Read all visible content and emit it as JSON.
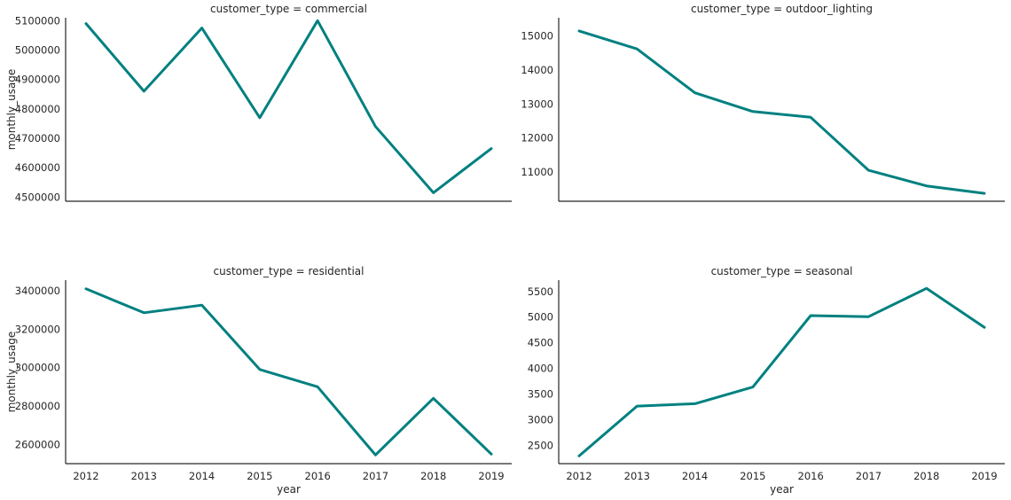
{
  "chart_data": [
    {
      "type": "line",
      "title": "customer_type = commercial",
      "xlabel": "",
      "ylabel": "monthly_usage",
      "x": [
        2012,
        2013,
        2014,
        2015,
        2016,
        2017,
        2018,
        2019
      ],
      "values": [
        5090000,
        4860000,
        5075000,
        4770000,
        5100000,
        4740000,
        4515000,
        4665000
      ],
      "ylim": [
        4486000,
        5110000
      ],
      "yticks": [
        4500000,
        4600000,
        4700000,
        4800000,
        4900000,
        5000000,
        5100000
      ],
      "ytick_labels": [
        "4500000",
        "4600000",
        "4700000",
        "4800000",
        "4900000",
        "5000000",
        "5100000"
      ],
      "xtick_labels": []
    },
    {
      "type": "line",
      "title": "customer_type = outdoor_lighting",
      "xlabel": "",
      "ylabel": "",
      "x": [
        2012,
        2013,
        2014,
        2015,
        2016,
        2017,
        2018,
        2019
      ],
      "values": [
        15150,
        14620,
        13330,
        12780,
        12610,
        11050,
        10590,
        10370
      ],
      "ylim": [
        10139,
        15539
      ],
      "yticks": [
        11000,
        12000,
        13000,
        14000,
        15000
      ],
      "ytick_labels": [
        "11000",
        "12000",
        "13000",
        "14000",
        "15000"
      ],
      "xtick_labels": []
    },
    {
      "type": "line",
      "title": "customer_type = residential",
      "xlabel": "year",
      "ylabel": "monthly_usage",
      "x": [
        2012,
        2013,
        2014,
        2015,
        2016,
        2017,
        2018,
        2019
      ],
      "values": [
        3410000,
        3285000,
        3325000,
        2990000,
        2900000,
        2545000,
        2840000,
        2550000
      ],
      "ylim": [
        2500000,
        3455000
      ],
      "yticks": [
        2600000,
        2800000,
        3000000,
        3200000,
        3400000
      ],
      "ytick_labels": [
        "2600000",
        "2800000",
        "3000000",
        "3200000",
        "3400000"
      ],
      "xtick_labels": [
        "2012",
        "2013",
        "2014",
        "2015",
        "2016",
        "2017",
        "2018",
        "2019"
      ]
    },
    {
      "type": "line",
      "title": "customer_type = seasonal",
      "xlabel": "year",
      "ylabel": "",
      "x": [
        2012,
        2013,
        2014,
        2015,
        2016,
        2017,
        2018,
        2019
      ],
      "values": [
        2300,
        3270,
        3315,
        3640,
        5030,
        5010,
        5560,
        4800
      ],
      "ylim": [
        2150,
        5720
      ],
      "yticks": [
        2500,
        3000,
        3500,
        4000,
        4500,
        5000,
        5500
      ],
      "ytick_labels": [
        "2500",
        "3000",
        "3500",
        "4000",
        "4500",
        "5000",
        "5500"
      ],
      "xtick_labels": [
        "2012",
        "2013",
        "2014",
        "2015",
        "2016",
        "2017",
        "2018",
        "2019"
      ]
    }
  ],
  "colors": {
    "line": "#008080",
    "axis": "#262626"
  }
}
